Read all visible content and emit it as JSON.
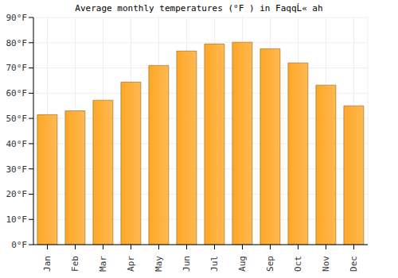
{
  "chart_data": {
    "type": "bar",
    "title": "Average monthly temperatures (°F ) in FaqqĹ« ah",
    "categories": [
      "Jan",
      "Feb",
      "Mar",
      "Apr",
      "May",
      "Jun",
      "Jul",
      "Aug",
      "Sep",
      "Oct",
      "Nov",
      "Dec"
    ],
    "values": [
      51.5,
      53,
      57.2,
      64.4,
      71,
      76.7,
      79.5,
      80.2,
      77.6,
      72,
      63.2,
      55
    ],
    "color": "#ffa726",
    "ylim": [
      0,
      90
    ],
    "yticks": [
      {
        "value": 0,
        "label": "0°F"
      },
      {
        "value": 10,
        "label": "10°F"
      },
      {
        "value": 20,
        "label": "20°F"
      },
      {
        "value": 30,
        "label": "30°F"
      },
      {
        "value": 40,
        "label": "40°F"
      },
      {
        "value": 50,
        "label": "50°F"
      },
      {
        "value": 60,
        "label": "60°F"
      },
      {
        "value": 70,
        "label": "70°F"
      },
      {
        "value": 80,
        "label": "80°F"
      },
      {
        "value": 90,
        "label": "90°F"
      }
    ],
    "grid": true
  }
}
